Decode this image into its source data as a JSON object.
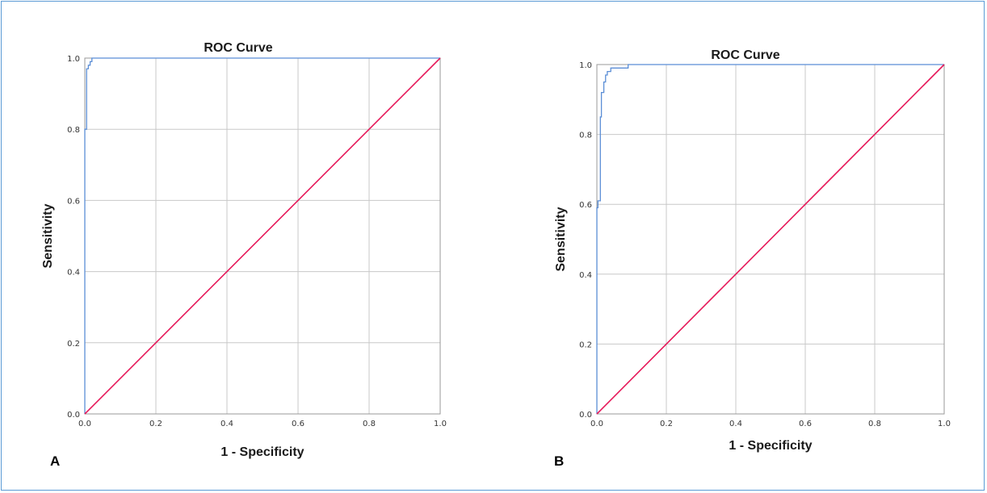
{
  "colors": {
    "frame": "#5b9bd5",
    "roc": "#5b8ed6",
    "reference": "#e6195a",
    "grid": "#c8c8c8"
  },
  "chart_data": [
    {
      "type": "line",
      "panel_label": "A",
      "title": "ROC Curve",
      "xlabel": "1 - Specificity",
      "ylabel": "Sensitivity",
      "xlim": [
        0,
        1
      ],
      "ylim": [
        0,
        1
      ],
      "xticks": [
        "0.0",
        "0.2",
        "0.4",
        "0.6",
        "0.8",
        "1.0"
      ],
      "yticks": [
        "0.0",
        "0.2",
        "0.4",
        "0.6",
        "0.8",
        "1.0"
      ],
      "grid": true,
      "series": [
        {
          "role": "roc",
          "x": [
            0,
            0,
            0.005,
            0.005,
            0.01,
            0.01,
            0.015,
            0.015,
            0.02,
            0.02,
            1.0
          ],
          "y": [
            0,
            0.8,
            0.8,
            0.97,
            0.97,
            0.98,
            0.98,
            0.99,
            0.99,
            1.0,
            1.0
          ]
        },
        {
          "role": "reference",
          "x": [
            0,
            1
          ],
          "y": [
            0,
            1
          ]
        }
      ]
    },
    {
      "type": "line",
      "panel_label": "B",
      "title": "ROC Curve",
      "xlabel": "1 - Specificity",
      "ylabel": "Sensitivity",
      "xlim": [
        0,
        1
      ],
      "ylim": [
        0,
        1
      ],
      "xticks": [
        "0.0",
        "0.2",
        "0.4",
        "0.6",
        "0.8",
        "1.0"
      ],
      "yticks": [
        "0.0",
        "0.2",
        "0.4",
        "0.6",
        "0.8",
        "1.0"
      ],
      "grid": true,
      "series": [
        {
          "role": "roc",
          "x": [
            0,
            0,
            0.003,
            0.003,
            0.01,
            0.01,
            0.013,
            0.013,
            0.02,
            0.02,
            0.025,
            0.025,
            0.03,
            0.03,
            0.04,
            0.04,
            0.06,
            0.06,
            0.09,
            0.09,
            1.0
          ],
          "y": [
            0,
            0.59,
            0.59,
            0.61,
            0.61,
            0.85,
            0.85,
            0.92,
            0.92,
            0.95,
            0.95,
            0.97,
            0.97,
            0.98,
            0.98,
            0.99,
            0.99,
            0.99,
            0.99,
            1.0,
            1.0
          ]
        },
        {
          "role": "reference",
          "x": [
            0,
            1
          ],
          "y": [
            0,
            1
          ]
        }
      ]
    }
  ]
}
